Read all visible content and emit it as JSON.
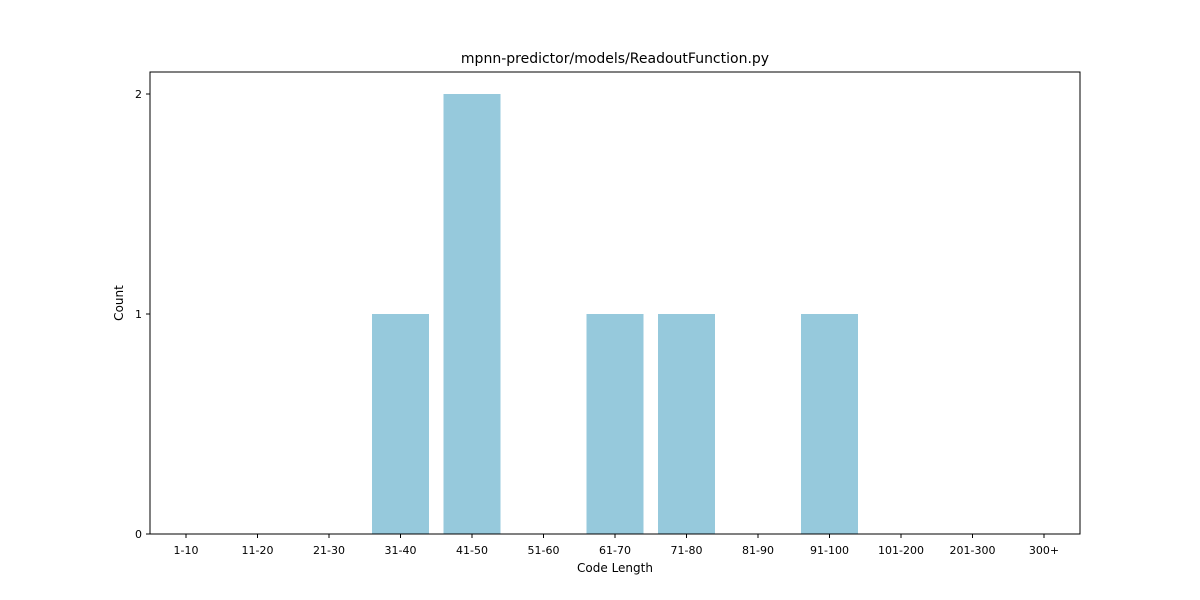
{
  "chart_data": {
    "type": "bar",
    "title": "mpnn-predictor/models/ReadoutFunction.py",
    "xlabel": "Code Length",
    "ylabel": "Count",
    "categories": [
      "1-10",
      "11-20",
      "21-30",
      "31-40",
      "41-50",
      "51-60",
      "61-70",
      "71-80",
      "81-90",
      "91-100",
      "101-200",
      "201-300",
      "300+"
    ],
    "values": [
      0,
      0,
      0,
      1,
      2,
      0,
      1,
      1,
      0,
      1,
      0,
      0,
      0
    ],
    "ylim": [
      0,
      2.1
    ],
    "yticks": [
      0,
      1,
      2
    ],
    "bar_color": "#96c9dc",
    "grid": false,
    "legend": "none"
  }
}
